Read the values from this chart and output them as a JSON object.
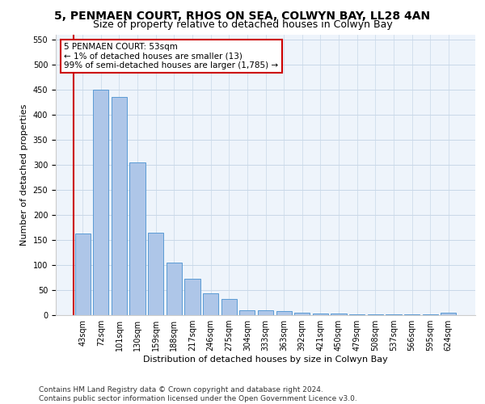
{
  "title1": "5, PENMAEN COURT, RHOS ON SEA, COLWYN BAY, LL28 4AN",
  "title2": "Size of property relative to detached houses in Colwyn Bay",
  "xlabel": "Distribution of detached houses by size in Colwyn Bay",
  "ylabel": "Number of detached properties",
  "categories": [
    "43sqm",
    "72sqm",
    "101sqm",
    "130sqm",
    "159sqm",
    "188sqm",
    "217sqm",
    "246sqm",
    "275sqm",
    "304sqm",
    "333sqm",
    "363sqm",
    "392sqm",
    "421sqm",
    "450sqm",
    "479sqm",
    "508sqm",
    "537sqm",
    "566sqm",
    "595sqm",
    "624sqm"
  ],
  "values": [
    162,
    450,
    435,
    305,
    165,
    105,
    73,
    44,
    33,
    10,
    10,
    8,
    5,
    3,
    3,
    2,
    2,
    2,
    2,
    2,
    5
  ],
  "bar_color": "#aec6e8",
  "bar_edge_color": "#5b9bd5",
  "annotation_text": "5 PENMAEN COURT: 53sqm\n← 1% of detached houses are smaller (13)\n99% of semi-detached houses are larger (1,785) →",
  "annotation_box_color": "#ffffff",
  "annotation_box_edge_color": "#cc0000",
  "vline_color": "#cc0000",
  "ylim": [
    0,
    560
  ],
  "yticks": [
    0,
    50,
    100,
    150,
    200,
    250,
    300,
    350,
    400,
    450,
    500,
    550
  ],
  "footer": "Contains HM Land Registry data © Crown copyright and database right 2024.\nContains public sector information licensed under the Open Government Licence v3.0.",
  "grid_color": "#c8d8e8",
  "background_color": "#eef4fb",
  "title1_fontsize": 10,
  "title2_fontsize": 9,
  "xlabel_fontsize": 8,
  "ylabel_fontsize": 8,
  "footer_fontsize": 6.5,
  "annotation_fontsize": 7.5,
  "tick_fontsize": 7
}
